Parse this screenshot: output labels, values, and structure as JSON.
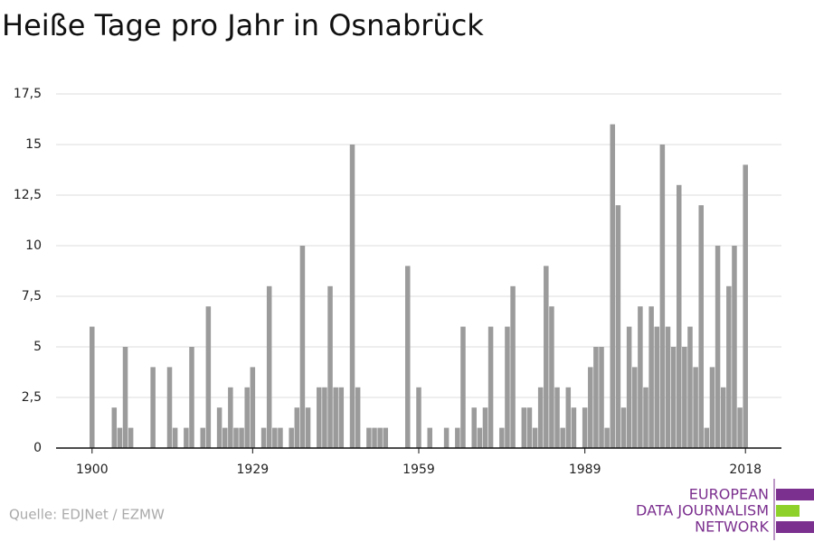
{
  "chart_data": {
    "type": "bar",
    "title": "Heiße Tage pro Jahr in Osnabrück",
    "source": "Quelle: EDJNet / EZMW",
    "logo": [
      "EUROPEAN",
      "DATA JOURNALISM",
      "NETWORK"
    ],
    "x": [
      1900,
      1901,
      1902,
      1903,
      1904,
      1905,
      1906,
      1907,
      1908,
      1909,
      1910,
      1911,
      1912,
      1913,
      1914,
      1915,
      1916,
      1917,
      1918,
      1919,
      1920,
      1921,
      1922,
      1923,
      1924,
      1925,
      1926,
      1927,
      1928,
      1929,
      1930,
      1931,
      1932,
      1933,
      1934,
      1935,
      1936,
      1937,
      1938,
      1939,
      1940,
      1941,
      1942,
      1943,
      1944,
      1945,
      1946,
      1947,
      1948,
      1949,
      1950,
      1951,
      1952,
      1953,
      1954,
      1955,
      1956,
      1957,
      1958,
      1959,
      1960,
      1961,
      1962,
      1963,
      1964,
      1965,
      1966,
      1967,
      1968,
      1969,
      1970,
      1971,
      1972,
      1973,
      1974,
      1975,
      1976,
      1977,
      1978,
      1979,
      1980,
      1981,
      1982,
      1983,
      1984,
      1985,
      1986,
      1987,
      1988,
      1989,
      1990,
      1991,
      1992,
      1993,
      1994,
      1995,
      1996,
      1997,
      1998,
      1999,
      2000,
      2001,
      2002,
      2003,
      2004,
      2005,
      2006,
      2007,
      2008,
      2009,
      2010,
      2011,
      2012,
      2013,
      2014,
      2015,
      2016,
      2017,
      2018
    ],
    "values": [
      6,
      0,
      0,
      0,
      2,
      1,
      5,
      1,
      0,
      0,
      0,
      4,
      0,
      0,
      4,
      1,
      0,
      1,
      5,
      0,
      1,
      7,
      0,
      2,
      1,
      3,
      1,
      1,
      3,
      4,
      0,
      1,
      8,
      1,
      1,
      0,
      1,
      2,
      10,
      2,
      0,
      3,
      3,
      8,
      3,
      3,
      0,
      15,
      3,
      0,
      1,
      1,
      1,
      1,
      0,
      0,
      0,
      9,
      0,
      3,
      0,
      1,
      0,
      0,
      1,
      0,
      1,
      6,
      0,
      2,
      1,
      2,
      6,
      0,
      1,
      6,
      8,
      0,
      2,
      2,
      1,
      3,
      9,
      7,
      3,
      1,
      3,
      2,
      0,
      2,
      4,
      5,
      5,
      1,
      16,
      12,
      2,
      6,
      4,
      7,
      3,
      7,
      6,
      15,
      6,
      5,
      13,
      5,
      6,
      4,
      12,
      1,
      4,
      10,
      3,
      8,
      10,
      2,
      14
    ],
    "color": "#9b9b9b",
    "xlim": [
      1893.5,
      2024.5
    ],
    "xticks": [
      1900,
      1929,
      1959,
      1989,
      2018
    ],
    "ylim": [
      0,
      17.5
    ],
    "yticks": [
      0,
      {
        "value": 2.5,
        "label": "2,5"
      },
      5,
      {
        "value": 7.5,
        "label": "7,5"
      },
      10,
      {
        "value": 12.5,
        "label": "12,5"
      },
      15,
      {
        "value": 17.5,
        "label": "17,5"
      }
    ],
    "grid": true
  }
}
